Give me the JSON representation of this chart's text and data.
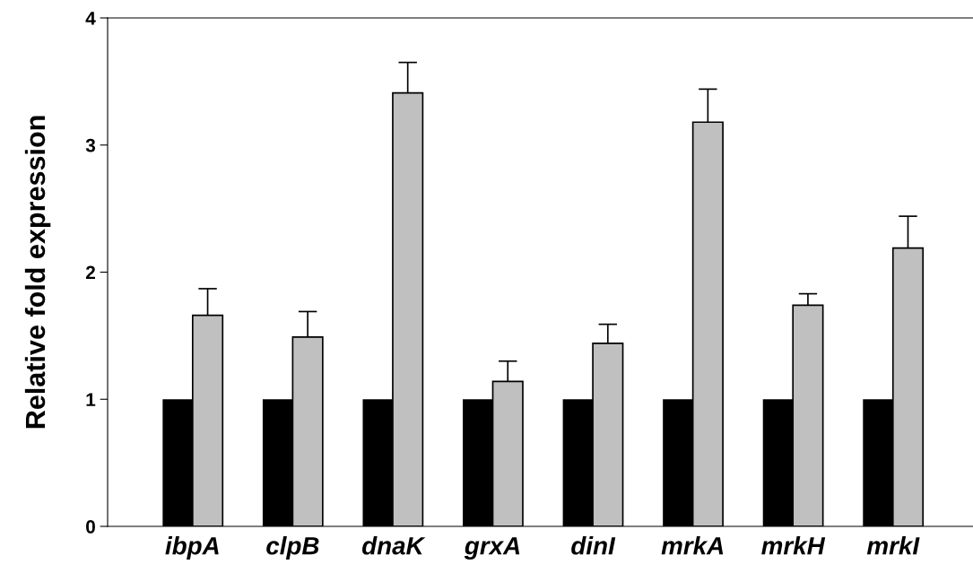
{
  "chart_data": {
    "type": "bar",
    "ylabel": "Relative fold expression",
    "categories": [
      "ibpA",
      "clpB",
      "dnaK",
      "grxA",
      "dinI",
      "mrkA",
      "mrkH",
      "mrkI"
    ],
    "series": [
      {
        "color": "#000000",
        "values": [
          1,
          1,
          1,
          1,
          1,
          1,
          1,
          1
        ]
      },
      {
        "color": "#c0c0c0",
        "values": [
          1.66,
          1.49,
          3.41,
          1.14,
          1.44,
          3.18,
          1.74,
          2.19
        ],
        "errors": [
          [
            1.66,
            1.87
          ],
          [
            1.49,
            1.69
          ],
          [
            3.41,
            3.65
          ],
          [
            1.14,
            1.3
          ],
          [
            1.44,
            1.59
          ],
          [
            3.18,
            3.44
          ],
          [
            1.74,
            1.83
          ],
          [
            2.19,
            2.44
          ]
        ]
      }
    ],
    "ylim": [
      0,
      4
    ],
    "yticks": [
      0,
      1,
      2,
      3,
      4
    ],
    "grid": false,
    "legend": false
  }
}
